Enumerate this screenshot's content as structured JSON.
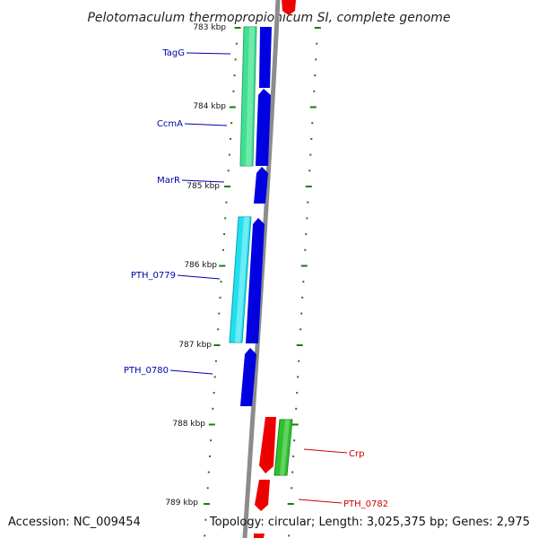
{
  "title": "Pelotomaculum thermopropionicum SI, complete genome",
  "footer": {
    "accession": "Accession: NC_009454",
    "topology": "Topology: circular; Length: 3,025,375 bp; Genes: 2,975"
  },
  "colors": {
    "backbone": "#8c8c8c",
    "tick": "#1a7a1a",
    "forward_label": "#0000aa",
    "reverse_label": "#cc0000",
    "cds_forward": "#0000e0",
    "cds_reverse": "#ee0000",
    "feature_green": "#40e090",
    "feature_cyan": "#20e0ee",
    "feature_green_dark": "#30c030"
  },
  "kbp_labels": [
    "783 kbp",
    "784 kbp",
    "785 kbp",
    "786 kbp",
    "787 kbp",
    "788 kbp",
    "789 kbp"
  ],
  "gene_labels": [
    {
      "name": "TagG",
      "strand": "forward"
    },
    {
      "name": "CcmA",
      "strand": "forward"
    },
    {
      "name": "MarR",
      "strand": "forward"
    },
    {
      "name": "PTH_0779",
      "strand": "forward"
    },
    {
      "name": "PTH_0780",
      "strand": "forward"
    },
    {
      "name": "Crp",
      "strand": "reverse"
    },
    {
      "name": "PTH_0782",
      "strand": "reverse"
    }
  ]
}
